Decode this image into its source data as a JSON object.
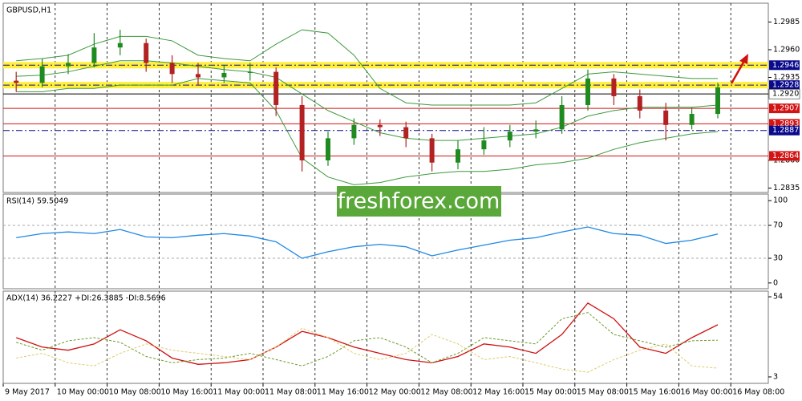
{
  "watermark": "freshforex.com",
  "chart_data": [
    {
      "type": "candlestick",
      "title": "GBPUSD,H1",
      "xlabels": [
        "9 May 2017",
        "10 May 00:00",
        "10 May 08:00",
        "10 May 16:00",
        "11 May 00:00",
        "11 May 08:00",
        "11 May 16:00",
        "12 May 00:00",
        "12 May 08:00",
        "12 May 16:00",
        "15 May 00:00",
        "15 May 08:00",
        "15 May 16:00",
        "16 May 00:00",
        "16 May 08:00"
      ],
      "open": [
        1.2932,
        1.293,
        1.2945,
        1.2948,
        1.2962,
        1.2966,
        1.2948,
        1.2938,
        1.2935,
        1.2939,
        1.294,
        1.291,
        1.286,
        1.288,
        1.2892,
        1.289,
        1.288,
        1.2858,
        1.287,
        1.2878,
        1.2886,
        1.2888,
        1.291,
        1.2934,
        1.2918,
        1.2905,
        1.2892,
        1.2902
      ],
      "high": [
        1.294,
        1.2952,
        1.2956,
        1.2975,
        1.2978,
        1.297,
        1.2955,
        1.2948,
        1.2946,
        1.2948,
        1.2944,
        1.2918,
        1.2886,
        1.2898,
        1.2897,
        1.2895,
        1.2884,
        1.2878,
        1.289,
        1.2892,
        1.2896,
        1.2918,
        1.2942,
        1.2938,
        1.2924,
        1.2912,
        1.2908,
        1.293
      ],
      "low": [
        1.2922,
        1.2926,
        1.2938,
        1.2944,
        1.2955,
        1.294,
        1.293,
        1.2928,
        1.293,
        1.2932,
        1.29,
        1.285,
        1.2855,
        1.2874,
        1.2882,
        1.2872,
        1.285,
        1.2852,
        1.2865,
        1.2872,
        1.288,
        1.2884,
        1.2905,
        1.291,
        1.2898,
        1.2878,
        1.2888,
        1.2898
      ],
      "close": [
        1.293,
        1.2945,
        1.2948,
        1.2962,
        1.2966,
        1.2948,
        1.2938,
        1.2935,
        1.2939,
        1.294,
        1.291,
        1.286,
        1.288,
        1.2892,
        1.289,
        1.288,
        1.2858,
        1.287,
        1.2878,
        1.2886,
        1.2888,
        1.291,
        1.2934,
        1.2918,
        1.2905,
        1.2892,
        1.2902,
        1.2926
      ],
      "up_color": "#1f8a1f",
      "down_color": "#b22222",
      "series": [
        {
          "color": "#3c9a3c",
          "values": [
            1.295,
            1.2952,
            1.2955,
            1.2965,
            1.2972,
            1.2972,
            1.2968,
            1.2955,
            1.2952,
            1.295,
            1.2965,
            1.2978,
            1.2975,
            1.2955,
            1.2925,
            1.2912,
            1.291,
            1.291,
            1.291,
            1.291,
            1.2912,
            1.2925,
            1.2938,
            1.294,
            1.2938,
            1.2936,
            1.2934,
            1.2934
          ]
        },
        {
          "color": "#3c9a3c",
          "values": [
            1.2936,
            1.2937,
            1.294,
            1.2945,
            1.295,
            1.295,
            1.2948,
            1.2945,
            1.2942,
            1.294,
            1.2935,
            1.292,
            1.2905,
            1.2895,
            1.2885,
            1.288,
            1.2878,
            1.2878,
            1.288,
            1.2882,
            1.2884,
            1.289,
            1.29,
            1.2905,
            1.2908,
            1.2908,
            1.2908,
            1.291
          ]
        },
        {
          "color": "#3c9a3c",
          "values": [
            1.2922,
            1.2922,
            1.2925,
            1.2925,
            1.2928,
            1.2928,
            1.2928,
            1.2934,
            1.2932,
            1.293,
            1.2905,
            1.2862,
            1.2845,
            1.2838,
            1.284,
            1.2845,
            1.2848,
            1.285,
            1.285,
            1.2852,
            1.2856,
            1.2858,
            1.2862,
            1.287,
            1.2876,
            1.288,
            1.2884,
            1.2886
          ]
        }
      ],
      "ylim": [
        1.2831,
        1.3002
      ],
      "yticks": [
        1.2985,
        {
          "value": 1.296,
          "label": "1.2960"
        },
        1.2935,
        {
          "value": 1.286,
          "label": "1.2860"
        },
        1.2835
      ],
      "levels": [
        {
          "value": 1.2946,
          "label": "1.2946",
          "color": "#0a0a8c",
          "style": "dashdot",
          "highlight": "#ffef3a"
        },
        {
          "value": 1.2928,
          "label": "1.2928",
          "color": "#0a0a8c",
          "style": "dashdot",
          "highlight": "#ffef3a"
        },
        {
          "value": 1.292,
          "label": "1.2920",
          "color": "#000000",
          "style": "solid",
          "text_color": "#000000",
          "fill": "#ffffff"
        },
        {
          "value": 1.2907,
          "label": "1.2907",
          "color": "#d21414",
          "style": "solid"
        },
        {
          "value": 1.2893,
          "label": "1.2893",
          "color": "#d21414",
          "style": "solid"
        },
        {
          "value": 1.2887,
          "label": "1.2887",
          "color": "#0a0a8c",
          "style": "dashdot"
        },
        {
          "value": 1.2864,
          "label": "1.2864",
          "color": "#d21414",
          "style": "solid"
        }
      ]
    },
    {
      "type": "line",
      "title": "RSI(14) 59.5049",
      "series": [
        {
          "color": "#1e88e5",
          "values": [
            55,
            60,
            62,
            60,
            65,
            56,
            55,
            58,
            60,
            57,
            50,
            30,
            38,
            44,
            47,
            44,
            33,
            40,
            46,
            52,
            55,
            62,
            68,
            60,
            58,
            48,
            52,
            59.5049
          ]
        }
      ],
      "ylim": [
        -7,
        108
      ],
      "yticks": [
        0,
        30,
        70,
        100
      ],
      "levels": [
        30,
        70
      ]
    },
    {
      "type": "line",
      "title": "ADX(14) 36.2227 +DI:26.3885 -DI:8.5696",
      "series": [
        {
          "color": "#d01010",
          "dash": false,
          "values": [
            28,
            22,
            20,
            24,
            33,
            26,
            15,
            11,
            12,
            14,
            22,
            32,
            28,
            22,
            18,
            14,
            12,
            16,
            24,
            22,
            18,
            30,
            50,
            40,
            22,
            18,
            28,
            36.2227
          ]
        },
        {
          "color": "#6b9b2a",
          "dash": true,
          "values": [
            25,
            20,
            26,
            28,
            25,
            16,
            12,
            14,
            15,
            18,
            14,
            10,
            16,
            26,
            28,
            22,
            12,
            18,
            28,
            26,
            24,
            40,
            44,
            30,
            26,
            22,
            26,
            26.3885
          ]
        },
        {
          "color": "#e0cc6a",
          "dash": true,
          "values": [
            15,
            18,
            12,
            10,
            18,
            24,
            20,
            18,
            16,
            14,
            22,
            34,
            28,
            18,
            14,
            18,
            30,
            24,
            14,
            16,
            12,
            8,
            6,
            14,
            20,
            24,
            10,
            8.5696
          ]
        }
      ],
      "ylim": [
        -1.1,
        57.6
      ],
      "yticks": [
        3,
        54
      ]
    }
  ]
}
